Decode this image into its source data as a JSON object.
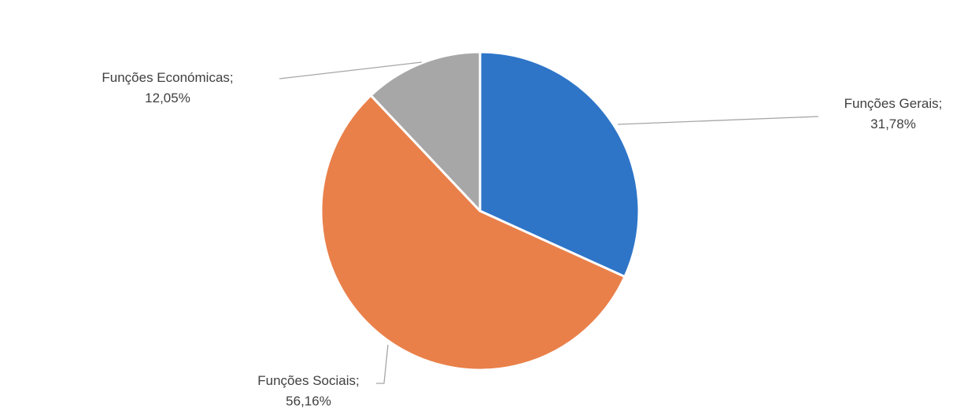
{
  "chart_data": {
    "type": "pie",
    "start_angle_deg": 0,
    "direction": "clockwise",
    "legend": "none",
    "slices": [
      {
        "category": "Funções Gerais",
        "value": 31.78,
        "label": "Funções Gerais;",
        "value_label": "31,78%",
        "color": "#2e75c8"
      },
      {
        "category": "Funções Sociais",
        "value": 56.16,
        "label": "Funções Sociais;",
        "value_label": "56,16%",
        "color": "#e9804a"
      },
      {
        "category": "Funções Económicas",
        "value": 12.05,
        "label": "Funções Económicas;",
        "value_label": "12,05%",
        "color": "#a7a7a7"
      }
    ]
  }
}
